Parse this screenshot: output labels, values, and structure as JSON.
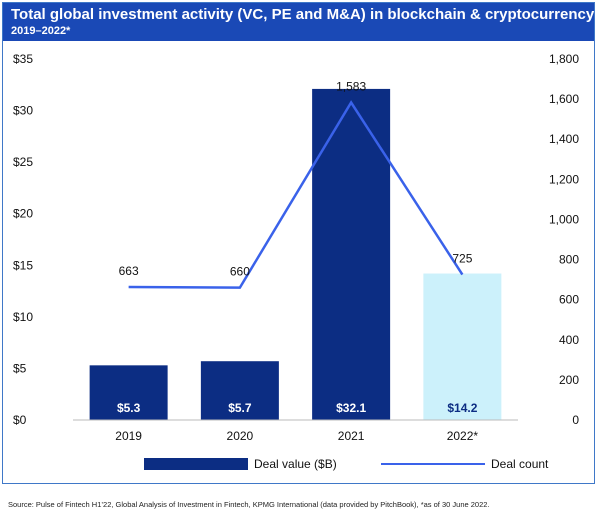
{
  "header": {
    "title": "Total global investment activity (VC, PE and M&A) in blockchain & cryptocurrency",
    "subtitle": "2019–2022*"
  },
  "chart_data": {
    "type": "bar",
    "categories": [
      "2019",
      "2020",
      "2021",
      "2022*"
    ],
    "series": [
      {
        "name": "Deal value ($B)",
        "type": "bar",
        "axis": "left",
        "values": [
          5.3,
          5.7,
          32.1,
          14.2
        ],
        "labels": [
          "$5.3",
          "$5.7",
          "$32.1",
          "$14.2"
        ],
        "colors": [
          "#0c2d83",
          "#0c2d83",
          "#0c2d83",
          "#ccf1fb"
        ]
      },
      {
        "name": "Deal count",
        "type": "line",
        "axis": "right",
        "values": [
          663,
          660,
          1583,
          725
        ],
        "labels": [
          "663",
          "660",
          "1,583",
          "725"
        ],
        "color": "#3a62ea"
      }
    ],
    "y_left": {
      "ylim": [
        0,
        35
      ],
      "ticks": [
        "$0",
        "$5",
        "$10",
        "$15",
        "$20",
        "$25",
        "$30",
        "$35"
      ]
    },
    "y_right": {
      "ylim": [
        0,
        1800
      ],
      "ticks": [
        "0",
        "200",
        "400",
        "600",
        "800",
        "1,000",
        "1,200",
        "1,400",
        "1,600",
        "1,800"
      ]
    },
    "legend": "bottom"
  },
  "footer": {
    "source": "Source: Pulse of Fintech H1’22, Global Analysis of Investment in Fintech, KPMG International (data provided by PitchBook), *as of 30 June 2022."
  }
}
